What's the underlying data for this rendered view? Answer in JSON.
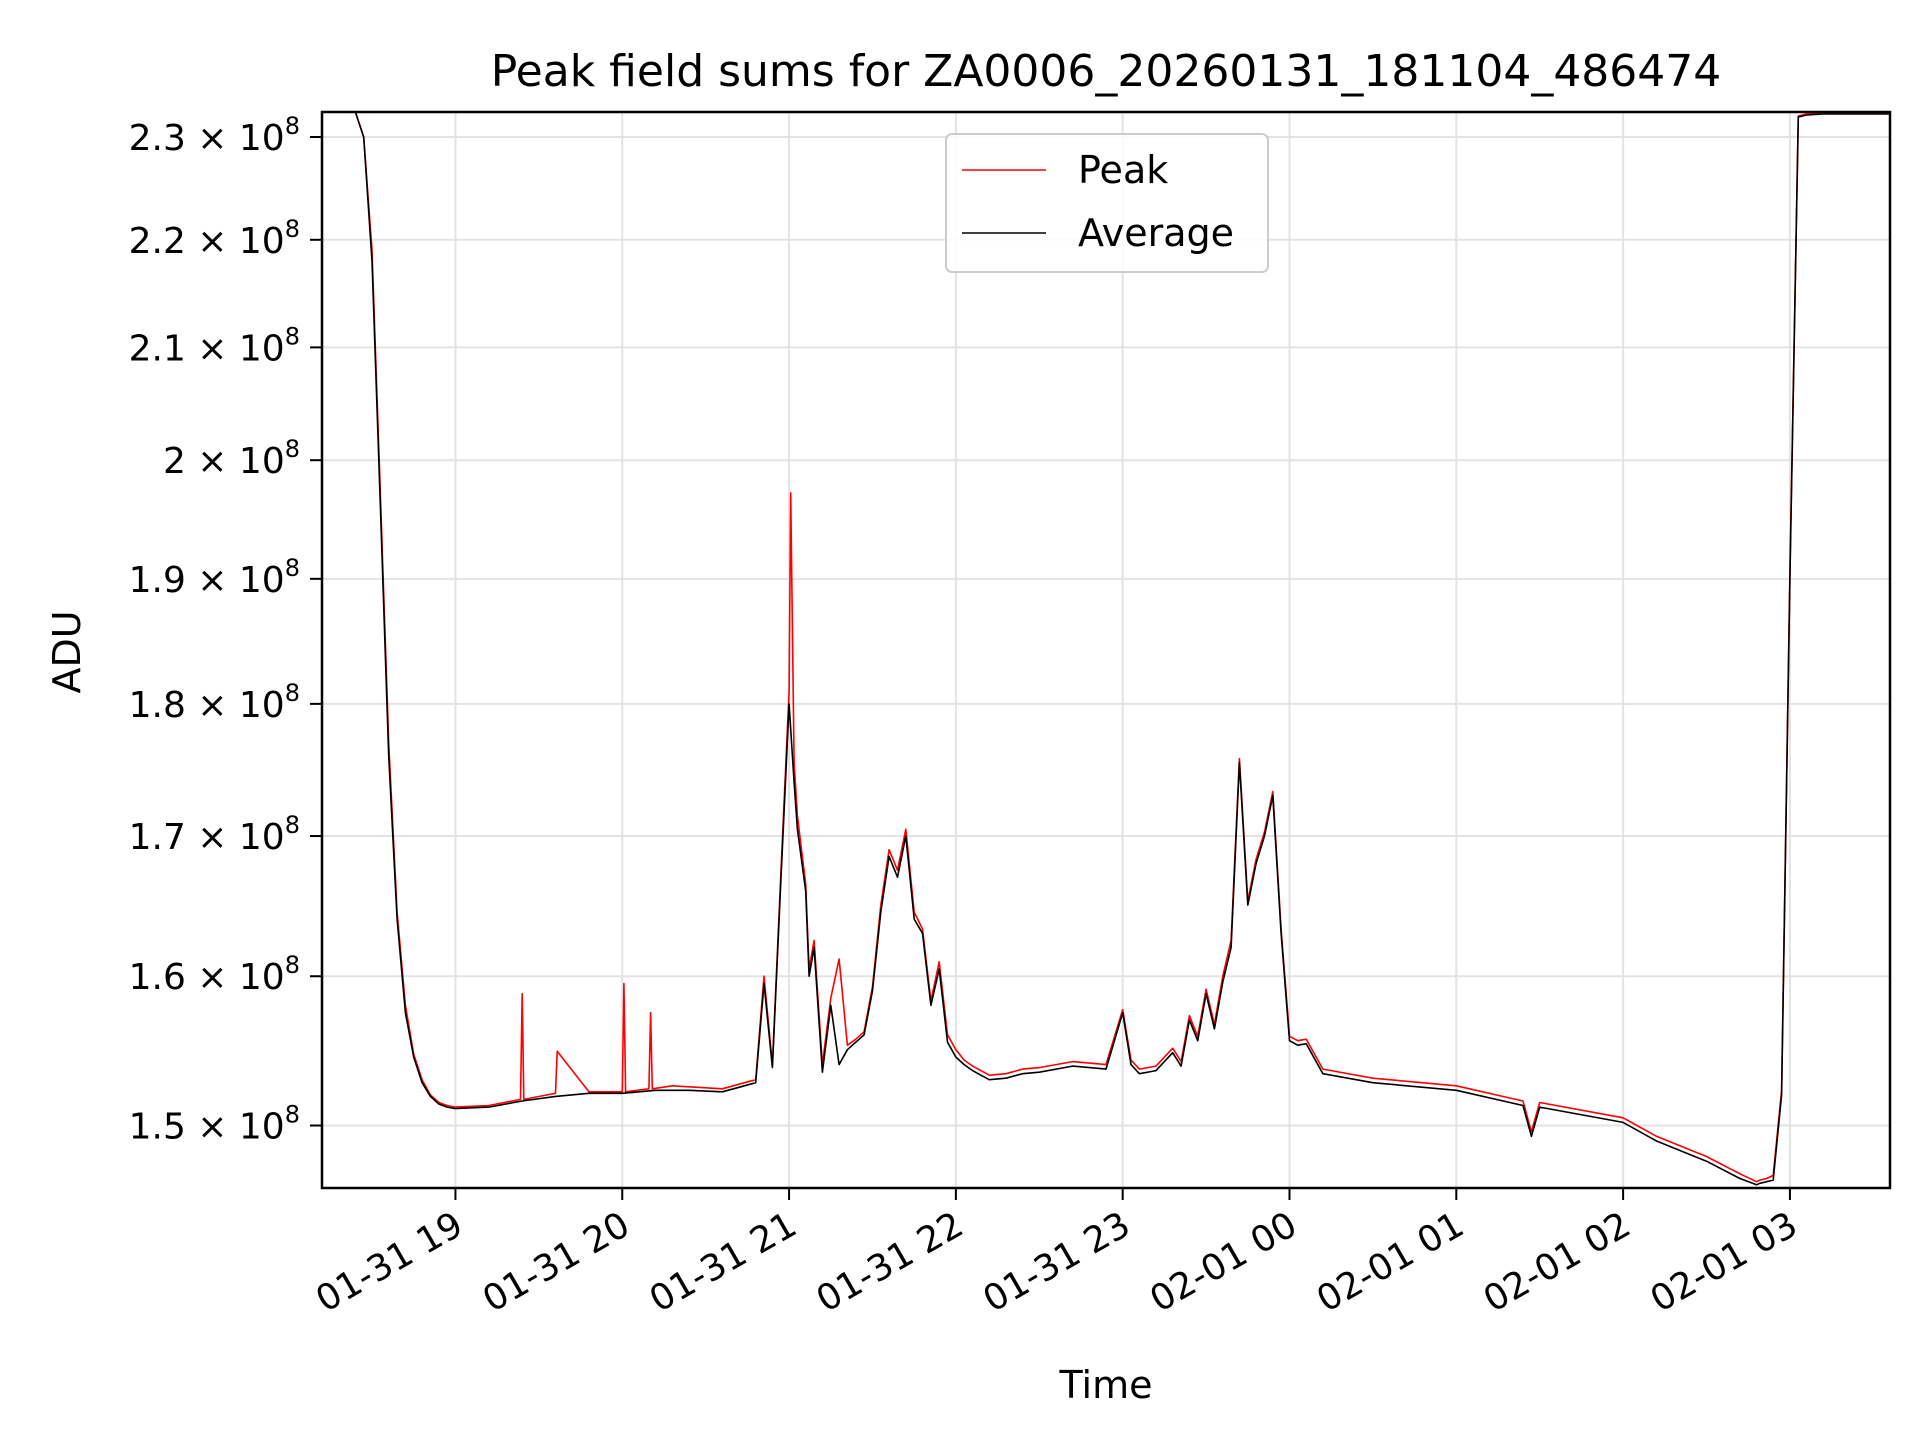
{
  "chart_data": {
    "type": "line",
    "title": "Peak field sums for ZA0006_20260131_181104_486474",
    "xlabel": "Time",
    "ylabel": "ADU",
    "yscale": "log",
    "xlim": [
      -0.8,
      8.6
    ],
    "ylim": [
      146000000,
      232500000
    ],
    "grid": true,
    "legend_position": "upper center",
    "x_unit": "hours since 01-31 19:00",
    "x_ticks": [
      {
        "value": 0,
        "label": "01-31 19"
      },
      {
        "value": 1,
        "label": "01-31 20"
      },
      {
        "value": 2,
        "label": "01-31 21"
      },
      {
        "value": 3,
        "label": "01-31 22"
      },
      {
        "value": 4,
        "label": "01-31 23"
      },
      {
        "value": 5,
        "label": "02-01 00"
      },
      {
        "value": 6,
        "label": "02-01 01"
      },
      {
        "value": 7,
        "label": "02-01 02"
      },
      {
        "value": 8,
        "label": "02-01 03"
      }
    ],
    "y_ticks": [
      {
        "value": 150000000,
        "mantissa": "1.5",
        "exponent": "8"
      },
      {
        "value": 160000000,
        "mantissa": "1.6",
        "exponent": "8"
      },
      {
        "value": 170000000,
        "mantissa": "1.7",
        "exponent": "8"
      },
      {
        "value": 180000000,
        "mantissa": "1.8",
        "exponent": "8"
      },
      {
        "value": 190000000,
        "mantissa": "1.9",
        "exponent": "8"
      },
      {
        "value": 200000000,
        "mantissa": "2",
        "exponent": "8"
      },
      {
        "value": 210000000,
        "mantissa": "2.1",
        "exponent": "8"
      },
      {
        "value": 220000000,
        "mantissa": "2.2",
        "exponent": "8"
      },
      {
        "value": 230000000,
        "mantissa": "2.3",
        "exponent": "8"
      }
    ],
    "times_symbol": "×",
    "base": "10",
    "series": [
      {
        "name": "Average",
        "color": "#000000",
        "x": [
          -0.8,
          -0.6,
          -0.55,
          -0.5,
          -0.45,
          -0.4,
          -0.35,
          -0.3,
          -0.25,
          -0.2,
          -0.15,
          -0.1,
          -0.05,
          0.0,
          0.2,
          0.4,
          0.6,
          0.8,
          1.0,
          1.2,
          1.4,
          1.6,
          1.7,
          1.8,
          1.85,
          1.9,
          1.95,
          2.0,
          2.03,
          2.05,
          2.1,
          2.12,
          2.15,
          2.2,
          2.25,
          2.3,
          2.35,
          2.4,
          2.45,
          2.5,
          2.55,
          2.6,
          2.65,
          2.7,
          2.75,
          2.8,
          2.85,
          2.9,
          2.95,
          3.0,
          3.05,
          3.1,
          3.15,
          3.2,
          3.3,
          3.4,
          3.5,
          3.7,
          3.9,
          4.0,
          4.05,
          4.1,
          4.2,
          4.3,
          4.35,
          4.4,
          4.45,
          4.5,
          4.55,
          4.6,
          4.65,
          4.7,
          4.75,
          4.8,
          4.85,
          4.9,
          4.95,
          5.0,
          5.05,
          5.1,
          5.2,
          5.5,
          6.0,
          6.4,
          6.45,
          6.5,
          7.0,
          7.2,
          7.5,
          7.7,
          7.8,
          7.82,
          7.86,
          7.9,
          7.95,
          8.0,
          8.05,
          8.1,
          8.2,
          8.6
        ],
        "y": [
          232500000,
          232500000,
          230000000,
          218000000,
          196000000,
          176000000,
          164000000,
          157500000,
          154500000,
          152800000,
          151900000,
          151400000,
          151200000,
          151100000,
          151200000,
          151600000,
          151900000,
          152100000,
          152100000,
          152300000,
          152300000,
          152200000,
          152500000,
          152800000,
          159500000,
          153800000,
          166500000,
          180000000,
          174000000,
          170500000,
          166000000,
          160000000,
          162000000,
          153500000,
          158000000,
          154000000,
          155000000,
          155500000,
          156000000,
          159000000,
          164500000,
          168500000,
          167000000,
          170000000,
          164000000,
          163000000,
          158000000,
          160500000,
          155500000,
          154500000,
          154000000,
          153600000,
          153300000,
          153000000,
          153100000,
          153400000,
          153500000,
          153900000,
          153700000,
          157500000,
          154000000,
          153400000,
          153600000,
          154800000,
          153900000,
          157000000,
          155600000,
          158800000,
          156400000,
          159600000,
          162000000,
          175500000,
          165000000,
          168000000,
          170000000,
          173000000,
          163000000,
          155600000,
          155300000,
          155400000,
          153400000,
          152800000,
          152300000,
          151300000,
          149300000,
          151200000,
          150200000,
          149000000,
          147700000,
          146600000,
          146200000,
          146300000,
          146400000,
          146500000,
          152000000,
          190000000,
          232000000,
          232200000,
          232300000,
          232300000
        ]
      },
      {
        "name": "Peak",
        "color": "#ff0000",
        "x": [
          -0.8,
          -0.6,
          -0.55,
          -0.5,
          -0.45,
          -0.4,
          -0.35,
          -0.3,
          -0.25,
          -0.2,
          -0.15,
          -0.1,
          -0.05,
          0.0,
          0.2,
          0.39,
          0.4,
          0.41,
          0.55,
          0.6,
          0.61,
          0.8,
          1.0,
          1.01,
          1.02,
          1.16,
          1.17,
          1.18,
          1.3,
          1.6,
          1.7,
          1.8,
          1.85,
          1.9,
          1.95,
          2.0,
          2.01,
          2.03,
          2.05,
          2.1,
          2.12,
          2.15,
          2.2,
          2.25,
          2.3,
          2.35,
          2.4,
          2.45,
          2.5,
          2.55,
          2.6,
          2.65,
          2.7,
          2.75,
          2.8,
          2.85,
          2.9,
          2.95,
          3.0,
          3.05,
          3.1,
          3.15,
          3.2,
          3.3,
          3.4,
          3.5,
          3.7,
          3.9,
          4.0,
          4.05,
          4.1,
          4.2,
          4.3,
          4.35,
          4.4,
          4.45,
          4.5,
          4.55,
          4.6,
          4.65,
          4.7,
          4.75,
          4.8,
          4.85,
          4.9,
          4.95,
          5.0,
          5.05,
          5.1,
          5.2,
          5.5,
          6.0,
          6.4,
          6.45,
          6.5,
          7.0,
          7.2,
          7.5,
          7.7,
          7.8,
          7.82,
          7.86,
          7.9,
          7.95,
          8.0,
          8.05,
          8.1,
          8.2,
          8.6
        ],
        "y": [
          232500000,
          232500000,
          230000000,
          219000000,
          197000000,
          177000000,
          164500000,
          158000000,
          154700000,
          153000000,
          152000000,
          151500000,
          151300000,
          151200000,
          151300000,
          151700000,
          158800000,
          151700000,
          152000000,
          152100000,
          154900000,
          152200000,
          152200000,
          159500000,
          152200000,
          152400000,
          157500000,
          152400000,
          152600000,
          152400000,
          152700000,
          153000000,
          160000000,
          154000000,
          167000000,
          181000000,
          197200000,
          175500000,
          171500000,
          166500000,
          160500000,
          162500000,
          154000000,
          158500000,
          161200000,
          155300000,
          155700000,
          156200000,
          159300000,
          165000000,
          169000000,
          167500000,
          170500000,
          164500000,
          163300000,
          158300000,
          161000000,
          156000000,
          155000000,
          154300000,
          153900000,
          153600000,
          153300000,
          153400000,
          153700000,
          153800000,
          154200000,
          154000000,
          157700000,
          154300000,
          153700000,
          153900000,
          155100000,
          154200000,
          157300000,
          155900000,
          159100000,
          156700000,
          160000000,
          162500000,
          175800000,
          165300000,
          168300000,
          170300000,
          173300000,
          163300000,
          155900000,
          155600000,
          155700000,
          153700000,
          153100000,
          152600000,
          151600000,
          149600000,
          151500000,
          150500000,
          149300000,
          148000000,
          146900000,
          146400000,
          146500000,
          146600000,
          146800000,
          152300000,
          190500000,
          232100000,
          232300000,
          232400000,
          232400000
        ]
      }
    ]
  }
}
